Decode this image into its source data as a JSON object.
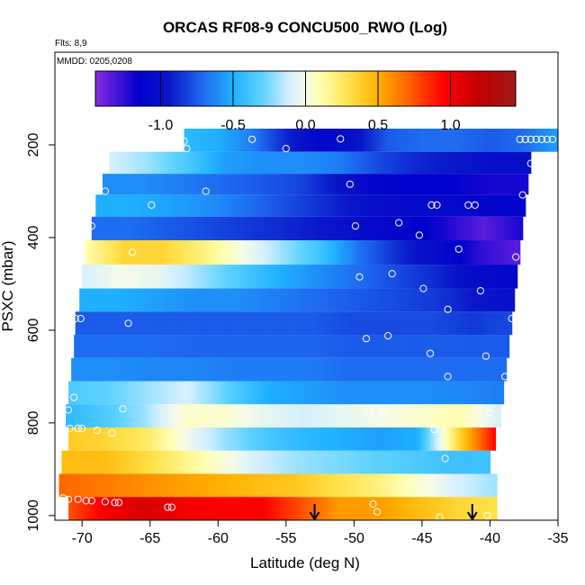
{
  "chart_data": {
    "type": "heatmap",
    "title": "ORCAS RF08-9 CONCU500_RWO (Log)",
    "flights_note": "Flts: 8,9",
    "date_note": "MMDD: 0205,0208",
    "xlabel": "Latitude (deg N)",
    "ylabel": "PSXC (mbar)",
    "xlim": [
      -72,
      -35
    ],
    "ylim": [
      1010,
      0
    ],
    "x_ticks": [
      -70,
      -65,
      -60,
      -55,
      -50,
      -45,
      -40,
      -35
    ],
    "y_ticks": [
      200,
      400,
      600,
      800,
      1000
    ],
    "colorbar": {
      "range": [
        -1.45,
        1.45
      ],
      "ticks": [
        -1.0,
        -0.5,
        0.0,
        0.5,
        1.0
      ],
      "tick_labels": [
        "-1.0",
        "-0.5",
        "0.0",
        "0.5",
        "1.0"
      ],
      "stops": [
        {
          "v": -1.45,
          "color": "#8a2be2"
        },
        {
          "v": -1.15,
          "color": "#0000cc"
        },
        {
          "v": -0.95,
          "color": "#0a16c8"
        },
        {
          "v": -0.7,
          "color": "#1e6cf0"
        },
        {
          "v": -0.5,
          "color": "#1fb0ff"
        },
        {
          "v": -0.3,
          "color": "#5ed2ff"
        },
        {
          "v": -0.12,
          "color": "#cfeeff"
        },
        {
          "v": 0.0,
          "color": "#f6fbe8"
        },
        {
          "v": 0.1,
          "color": "#ffffb0"
        },
        {
          "v": 0.3,
          "color": "#ffe24a"
        },
        {
          "v": 0.5,
          "color": "#ffb000"
        },
        {
          "v": 0.7,
          "color": "#ff6600"
        },
        {
          "v": 0.95,
          "color": "#ff0000"
        },
        {
          "v": 1.2,
          "color": "#c00000"
        },
        {
          "v": 1.45,
          "color": "#a01a1a"
        }
      ]
    },
    "rows": [
      {
        "p": 190,
        "lat_start": -62.5,
        "lat_end": -35.0,
        "values": [
          -0.45,
          -0.5,
          -0.65,
          -0.9,
          -1.1,
          -1.0,
          -0.75,
          -0.7,
          -0.7,
          -0.75,
          -0.7,
          -0.55
        ]
      },
      {
        "p": 240,
        "lat_start": -68.0,
        "lat_end": -37.0,
        "values": [
          -0.1,
          -0.2,
          -0.35,
          -0.55,
          -0.6,
          -0.6,
          -0.65,
          -0.8,
          -0.9,
          -0.95,
          -1.0,
          -1.0
        ]
      },
      {
        "p": 285,
        "lat_start": -68.5,
        "lat_end": -37.2,
        "values": [
          -0.6,
          -0.6,
          -0.65,
          -0.7,
          -0.75,
          -0.8,
          -0.95,
          -1.1,
          -1.15,
          -1.15,
          -1.2,
          -1.2
        ]
      },
      {
        "p": 330,
        "lat_start": -69.0,
        "lat_end": -37.4,
        "values": [
          -0.5,
          -0.5,
          -0.55,
          -0.6,
          -0.7,
          -0.8,
          -0.9,
          -1.0,
          -1.05,
          -1.05,
          -1.1,
          -1.1
        ]
      },
      {
        "p": 380,
        "lat_start": -69.3,
        "lat_end": -37.6,
        "values": [
          -0.7,
          -0.7,
          -0.75,
          -0.8,
          -0.85,
          -0.9,
          -0.95,
          -1.05,
          -1.1,
          -1.2,
          -1.35,
          -1.2
        ]
      },
      {
        "p": 432,
        "lat_start": -69.8,
        "lat_end": -37.8,
        "values": [
          0.1,
          0.35,
          0.35,
          0.2,
          0.0,
          -0.2,
          -0.4,
          -0.7,
          -0.9,
          -1.05,
          -1.25,
          -1.35
        ]
      },
      {
        "p": 485,
        "lat_start": -70.0,
        "lat_end": -38.0,
        "values": [
          -0.1,
          0.0,
          -0.05,
          -0.2,
          -0.35,
          -0.5,
          -0.6,
          -0.7,
          -0.8,
          -0.9,
          -1.05,
          -1.1
        ]
      },
      {
        "p": 535,
        "lat_start": -70.2,
        "lat_end": -38.2,
        "values": [
          -0.5,
          -0.5,
          -0.55,
          -0.6,
          -0.6,
          -0.65,
          -0.7,
          -0.75,
          -0.8,
          -0.85,
          -0.95,
          -1.0
        ]
      },
      {
        "p": 585,
        "lat_start": -70.5,
        "lat_end": -38.4,
        "values": [
          -0.75,
          -0.75,
          -0.75,
          -0.75,
          -0.75,
          -0.75,
          -0.75,
          -0.8,
          -0.8,
          -0.8,
          -0.85,
          -0.8
        ]
      },
      {
        "p": 635,
        "lat_start": -70.6,
        "lat_end": -38.6,
        "values": [
          -0.7,
          -0.7,
          -0.7,
          -0.72,
          -0.72,
          -0.72,
          -0.72,
          -0.75,
          -0.75,
          -0.75,
          -0.75,
          -0.75
        ]
      },
      {
        "p": 685,
        "lat_start": -70.8,
        "lat_end": -38.8,
        "values": [
          -0.6,
          -0.6,
          -0.62,
          -0.62,
          -0.65,
          -0.65,
          -0.65,
          -0.7,
          -0.7,
          -0.7,
          -0.7,
          -0.7
        ]
      },
      {
        "p": 735,
        "lat_start": -71.0,
        "lat_end": -39.0,
        "values": [
          -0.35,
          -0.3,
          -0.2,
          -0.1,
          -0.3,
          -0.5,
          -0.55,
          -0.6,
          -0.6,
          -0.6,
          -0.62,
          -0.65
        ]
      },
      {
        "p": 785,
        "lat_start": -71.2,
        "lat_end": -39.2,
        "values": [
          -0.45,
          -0.35,
          -0.2,
          0.05,
          0.05,
          -0.05,
          -0.1,
          -0.05,
          0.0,
          0.05,
          0.1,
          -0.1
        ]
      },
      {
        "p": 835,
        "lat_start": -71.0,
        "lat_end": -39.6,
        "values": [
          0.4,
          0.35,
          0.25,
          0.0,
          -0.2,
          -0.35,
          -0.45,
          -0.5,
          -0.55,
          -0.5,
          0.3,
          0.95
        ]
      },
      {
        "p": 885,
        "lat_start": -71.5,
        "lat_end": -40.0,
        "values": [
          0.45,
          0.45,
          0.35,
          0.2,
          0.05,
          -0.1,
          -0.2,
          -0.25,
          -0.3,
          -0.35,
          -0.4,
          -0.4
        ]
      },
      {
        "p": 935,
        "lat_start": -71.7,
        "lat_end": -39.5,
        "values": [
          0.7,
          0.65,
          0.6,
          0.55,
          0.5,
          0.45,
          0.4,
          0.3,
          0.2,
          0.05,
          -0.1,
          -0.2
        ]
      },
      {
        "p": 985,
        "lat_start": -71.0,
        "lat_end": -39.5,
        "values": [
          0.75,
          1.0,
          1.1,
          1.0,
          0.95,
          0.95,
          0.75,
          0.55,
          0.55,
          0.45,
          0.35,
          0.3
        ]
      }
    ],
    "markers": [
      {
        "lat": -62.5,
        "p": 192
      },
      {
        "lat": -62.3,
        "p": 208
      },
      {
        "lat": -57.5,
        "p": 188
      },
      {
        "lat": -55.0,
        "p": 208
      },
      {
        "lat": -51.0,
        "p": 187
      },
      {
        "lat": -37.8,
        "p": 188
      },
      {
        "lat": -37.4,
        "p": 188
      },
      {
        "lat": -37.0,
        "p": 188
      },
      {
        "lat": -36.6,
        "p": 188
      },
      {
        "lat": -36.2,
        "p": 188
      },
      {
        "lat": -35.8,
        "p": 188
      },
      {
        "lat": -35.4,
        "p": 188
      },
      {
        "lat": -37.0,
        "p": 240
      },
      {
        "lat": -60.9,
        "p": 300
      },
      {
        "lat": -64.9,
        "p": 330
      },
      {
        "lat": -50.3,
        "p": 285
      },
      {
        "lat": -68.3,
        "p": 300
      },
      {
        "lat": -44.3,
        "p": 330
      },
      {
        "lat": -43.9,
        "p": 330
      },
      {
        "lat": -41.6,
        "p": 330
      },
      {
        "lat": -41.1,
        "p": 330
      },
      {
        "lat": -37.6,
        "p": 308
      },
      {
        "lat": -69.3,
        "p": 375
      },
      {
        "lat": -49.9,
        "p": 375
      },
      {
        "lat": -46.7,
        "p": 368
      },
      {
        "lat": -45.2,
        "p": 395
      },
      {
        "lat": -42.3,
        "p": 425
      },
      {
        "lat": -38.1,
        "p": 442
      },
      {
        "lat": -66.3,
        "p": 432
      },
      {
        "lat": -49.6,
        "p": 485
      },
      {
        "lat": -47.2,
        "p": 478
      },
      {
        "lat": -44.9,
        "p": 510
      },
      {
        "lat": -40.7,
        "p": 515
      },
      {
        "lat": -43.1,
        "p": 555
      },
      {
        "lat": -70.5,
        "p": 575
      },
      {
        "lat": -70.1,
        "p": 575
      },
      {
        "lat": -66.6,
        "p": 585
      },
      {
        "lat": -38.4,
        "p": 575
      },
      {
        "lat": -49.1,
        "p": 618
      },
      {
        "lat": -47.5,
        "p": 612
      },
      {
        "lat": -37.5,
        "p": 598
      },
      {
        "lat": -44.4,
        "p": 650
      },
      {
        "lat": -40.3,
        "p": 656
      },
      {
        "lat": -43.1,
        "p": 700
      },
      {
        "lat": -38.9,
        "p": 700
      },
      {
        "lat": -70.6,
        "p": 745
      },
      {
        "lat": -67.0,
        "p": 770
      },
      {
        "lat": -71.0,
        "p": 772
      },
      {
        "lat": -48.9,
        "p": 780
      },
      {
        "lat": -47.9,
        "p": 775
      },
      {
        "lat": -40.0,
        "p": 778
      },
      {
        "lat": -70.9,
        "p": 812
      },
      {
        "lat": -70.3,
        "p": 812
      },
      {
        "lat": -70.0,
        "p": 812
      },
      {
        "lat": -68.9,
        "p": 816
      },
      {
        "lat": -67.8,
        "p": 822
      },
      {
        "lat": -44.1,
        "p": 814
      },
      {
        "lat": -43.3,
        "p": 877
      },
      {
        "lat": -71.4,
        "p": 962
      },
      {
        "lat": -71.0,
        "p": 965
      },
      {
        "lat": -70.3,
        "p": 965
      },
      {
        "lat": -69.7,
        "p": 968
      },
      {
        "lat": -69.3,
        "p": 968
      },
      {
        "lat": -68.3,
        "p": 970
      },
      {
        "lat": -67.6,
        "p": 972
      },
      {
        "lat": -67.3,
        "p": 972
      },
      {
        "lat": -63.7,
        "p": 982
      },
      {
        "lat": -63.4,
        "p": 982
      },
      {
        "lat": -48.6,
        "p": 975
      },
      {
        "lat": -48.3,
        "p": 992
      },
      {
        "lat": -43.7,
        "p": 1004
      },
      {
        "lat": -40.2,
        "p": 1000
      }
    ],
    "arrows": [
      {
        "lat": -52.9,
        "p_from": 975,
        "p_to": 1010
      },
      {
        "lat": -41.3,
        "p_from": 975,
        "p_to": 1010
      }
    ]
  }
}
